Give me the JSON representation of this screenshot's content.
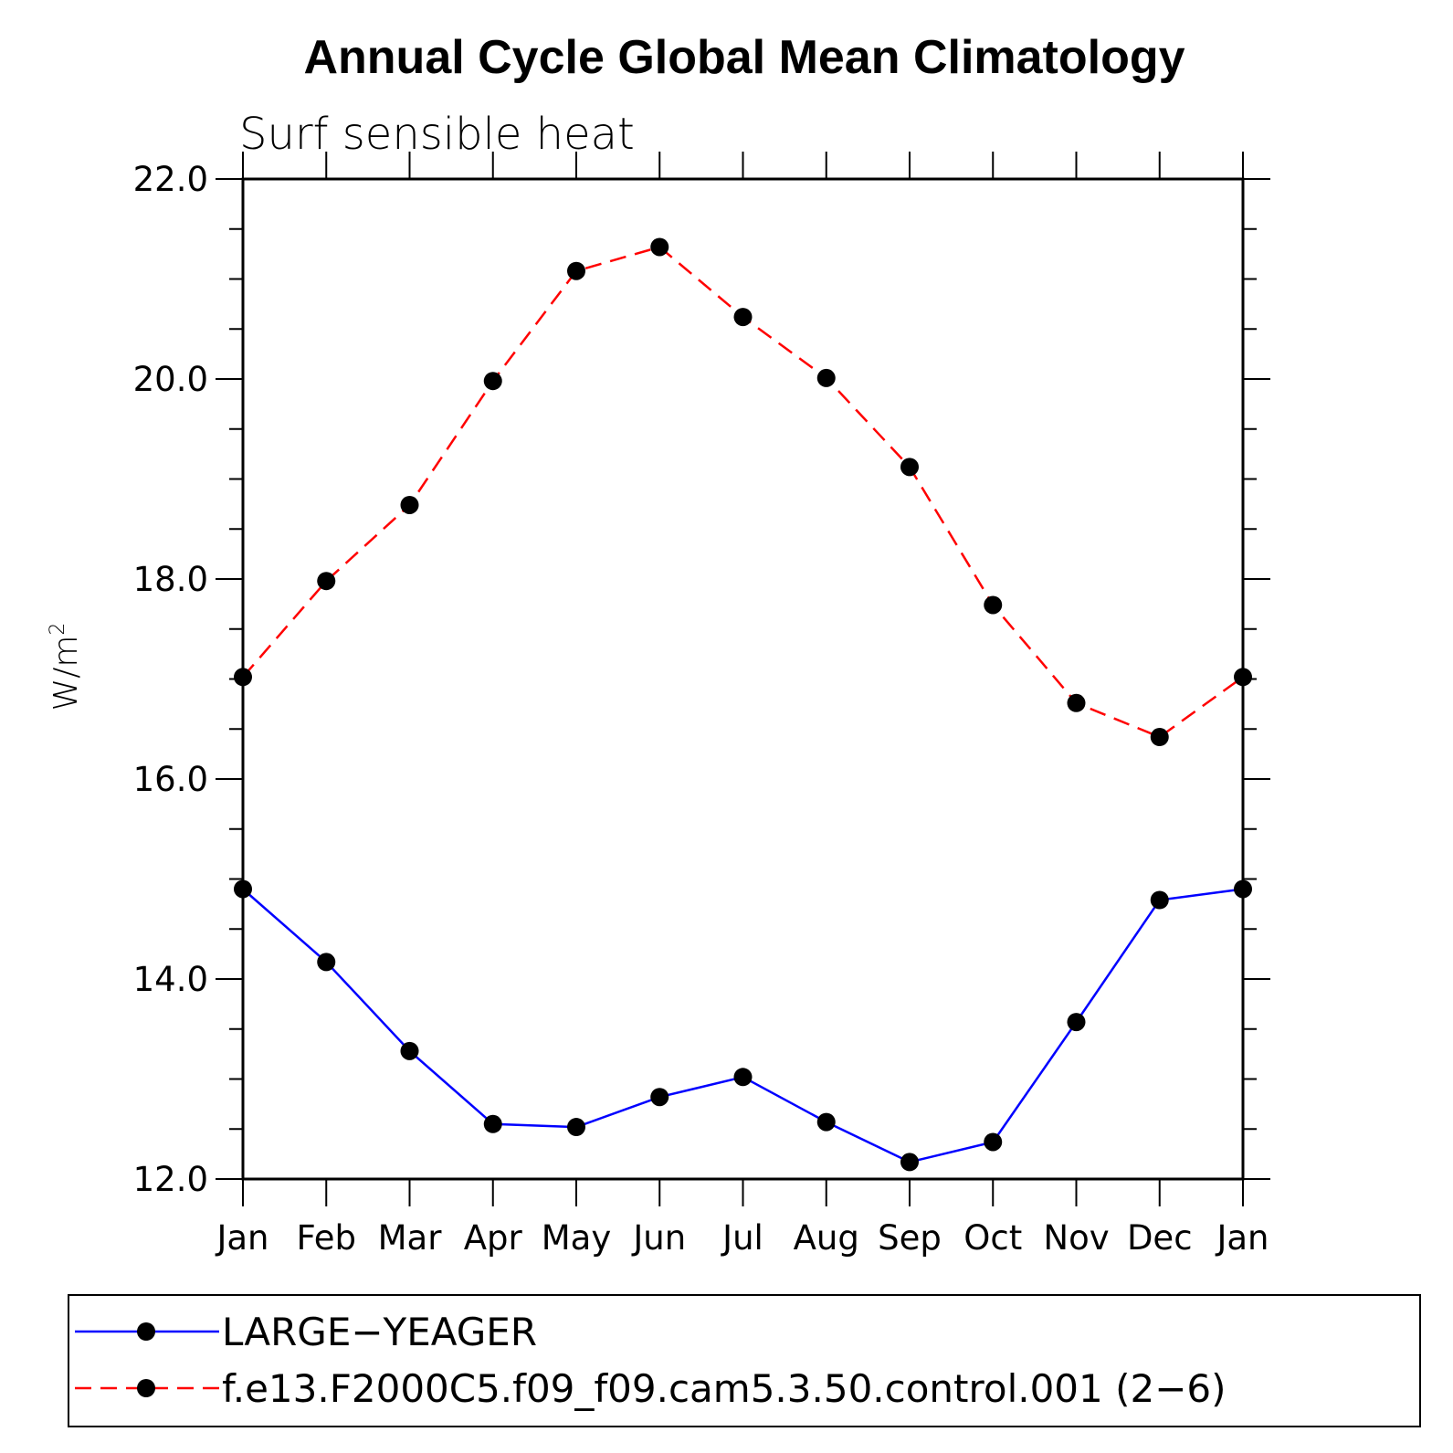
{
  "chart_data": {
    "type": "line",
    "title": "Annual Cycle Global Mean Climatology",
    "subtitle": "Surf sensible heat",
    "ylabel": "W/m",
    "ylabel_superscript": "2",
    "xlabel": "",
    "categories": [
      "Jan",
      "Feb",
      "Mar",
      "Apr",
      "May",
      "Jun",
      "Jul",
      "Aug",
      "Sep",
      "Oct",
      "Nov",
      "Dec",
      "Jan"
    ],
    "ylim": [
      12.0,
      22.0
    ],
    "yticks": [
      "12.0",
      "14.0",
      "16.0",
      "18.0",
      "20.0",
      "22.0"
    ],
    "grid": false,
    "legend_position": "bottom",
    "series": [
      {
        "name": "LARGE−YEAGER",
        "color": "#0000ff",
        "line_style": "solid",
        "marker": "filled-circle",
        "values": [
          14.9,
          14.17,
          13.28,
          12.55,
          12.52,
          12.82,
          13.02,
          12.57,
          12.17,
          12.37,
          13.57,
          14.79,
          14.9
        ]
      },
      {
        "name": "f.e13.F2000C5.f09_f09.cam5.3.50.control.001 (2−6)",
        "color": "#ff0000",
        "line_style": "dashed",
        "marker": "filled-circle",
        "values": [
          17.02,
          17.98,
          18.74,
          19.98,
          21.08,
          21.32,
          20.62,
          20.01,
          19.12,
          17.74,
          16.76,
          16.42,
          17.02
        ]
      }
    ]
  }
}
